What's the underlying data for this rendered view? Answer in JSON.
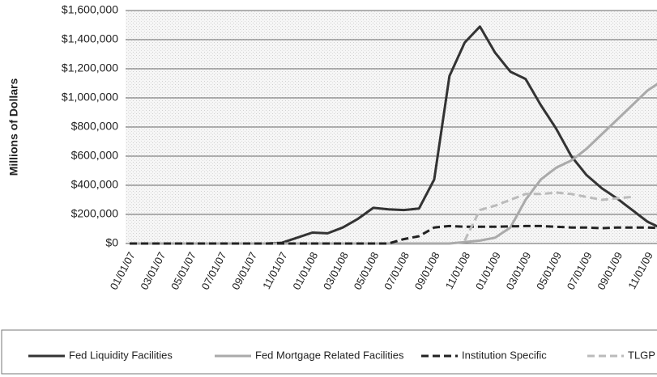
{
  "chart_data": {
    "type": "line",
    "y_axis_label": "Millions of Dollars",
    "categories": [
      "01/01/07",
      null,
      "03/01/07",
      null,
      "05/01/07",
      null,
      "07/01/07",
      null,
      "09/01/07",
      null,
      "11/01/07",
      null,
      "01/01/08",
      null,
      "03/01/08",
      null,
      "05/01/08",
      null,
      "07/01/08",
      null,
      "09/01/08",
      null,
      "11/01/08",
      null,
      "01/01/09",
      null,
      "03/01/09",
      null,
      "05/01/09",
      null,
      "07/01/09",
      null,
      "09/01/09",
      null,
      "11/01/09",
      null
    ],
    "series": [
      {
        "name": "Fed Liquidity Facilities",
        "color": "#333333",
        "dash": "solid",
        "values": [
          0,
          0,
          0,
          0,
          0,
          0,
          0,
          0,
          0,
          0,
          5000,
          40000,
          75000,
          70000,
          110000,
          170000,
          245000,
          235000,
          230000,
          240000,
          440000,
          1150000,
          1380000,
          1490000,
          1310000,
          1180000,
          1130000,
          950000,
          790000,
          600000,
          470000,
          380000,
          310000,
          230000,
          150000,
          100000
        ]
      },
      {
        "name": "Fed Mortgage Related Facilities",
        "color": "#aaaaaa",
        "dash": "solid",
        "values": [
          0,
          0,
          0,
          0,
          0,
          0,
          0,
          0,
          0,
          0,
          0,
          0,
          0,
          0,
          0,
          0,
          0,
          0,
          0,
          0,
          0,
          0,
          10000,
          20000,
          40000,
          110000,
          300000,
          440000,
          520000,
          570000,
          650000,
          750000,
          850000,
          950000,
          1050000,
          1120000
        ]
      },
      {
        "name": "Institution Specific",
        "color": "#222222",
        "dash": "dashed",
        "values": [
          0,
          0,
          0,
          0,
          0,
          0,
          0,
          0,
          0,
          0,
          0,
          0,
          0,
          0,
          0,
          0,
          0,
          0,
          30000,
          50000,
          110000,
          120000,
          115000,
          115000,
          115000,
          118000,
          120000,
          120000,
          115000,
          110000,
          110000,
          105000,
          110000,
          110000,
          110000,
          105000
        ]
      },
      {
        "name": "TLGP",
        "color": "#bbbbbb",
        "dash": "dashed",
        "values": [
          null,
          null,
          null,
          null,
          null,
          null,
          null,
          null,
          null,
          null,
          null,
          null,
          null,
          null,
          null,
          null,
          null,
          null,
          null,
          null,
          null,
          null,
          20000,
          230000,
          260000,
          300000,
          340000,
          340000,
          350000,
          340000,
          320000,
          300000,
          310000,
          320000,
          null,
          null
        ]
      }
    ],
    "ylim": [
      0,
      1600000
    ],
    "yticks": [
      {
        "value": 0,
        "label": "$0"
      },
      {
        "value": 200000,
        "label": "$200,000"
      },
      {
        "value": 400000,
        "label": "$400,000"
      },
      {
        "value": 600000,
        "label": "$600,000"
      },
      {
        "value": 800000,
        "label": "$800,000"
      },
      {
        "value": 1000000,
        "label": "$1,000,000"
      },
      {
        "value": 1200000,
        "label": "$1,200,000"
      },
      {
        "value": 1400000,
        "label": "$1,400,000"
      },
      {
        "value": 1600000,
        "label": "$1,600,000"
      }
    ],
    "grid": true,
    "legend": "bottom"
  }
}
